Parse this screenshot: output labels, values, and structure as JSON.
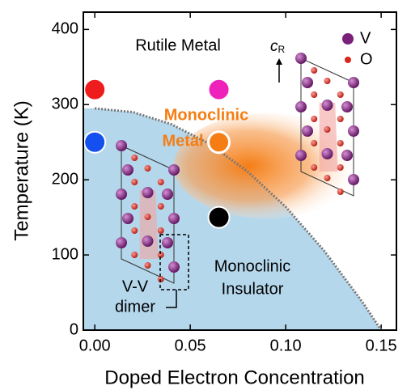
{
  "chart_data": {
    "type": "phase-diagram",
    "xlabel": "Doped Electron Concentration",
    "ylabel": "Temperature (K)",
    "xlim": [
      -0.006,
      0.158
    ],
    "ylim": [
      0,
      423
    ],
    "xticks": [
      {
        "value": 0,
        "label": "0.00"
      },
      0.05,
      {
        "value": 0.1,
        "label": "0.10"
      },
      0.15
    ],
    "yticks": [
      0,
      100,
      200,
      300,
      400
    ],
    "boundary": {
      "x": [
        0,
        0.02,
        0.04,
        0.06,
        0.08,
        0.1,
        0.12,
        0.14,
        0.15
      ],
      "y": [
        295,
        290,
        274,
        248,
        211,
        164,
        106,
        38,
        0
      ],
      "color": "#777777",
      "fill": "#b5d7ec"
    },
    "points": [
      {
        "x": 0,
        "y": 320,
        "color": "#ee1c1c",
        "open": false
      },
      {
        "x": 0,
        "y": 250,
        "color": "#1450f0",
        "open": false
      },
      {
        "x": 0.065,
        "y": 320,
        "color": "#ee22bb",
        "open": false
      },
      {
        "x": 0.065,
        "y": 250,
        "color": "#f57d14",
        "open": true
      },
      {
        "x": 0.065,
        "y": 150,
        "color": "#000000",
        "open": false
      }
    ],
    "annotations": [
      {
        "text": "Rutile Metal",
        "color": "#000000"
      },
      {
        "text": "Monoclinic",
        "color": "#f57d14"
      },
      {
        "text": "Metal",
        "color": "#f57d14"
      },
      {
        "text": "Monoclinic",
        "color": "#000000"
      },
      {
        "text": "Insulator",
        "color": "#000000"
      },
      {
        "text": "V-V",
        "color": "#000000"
      },
      {
        "text": "dimer",
        "color": "#000000"
      }
    ],
    "structure_legend": {
      "axis": {
        "main": "c",
        "sub": "R"
      },
      "atoms": [
        {
          "label": "V",
          "color": "#7a1f7a"
        },
        {
          "label": "O",
          "color": "#d8261c"
        }
      ]
    }
  }
}
